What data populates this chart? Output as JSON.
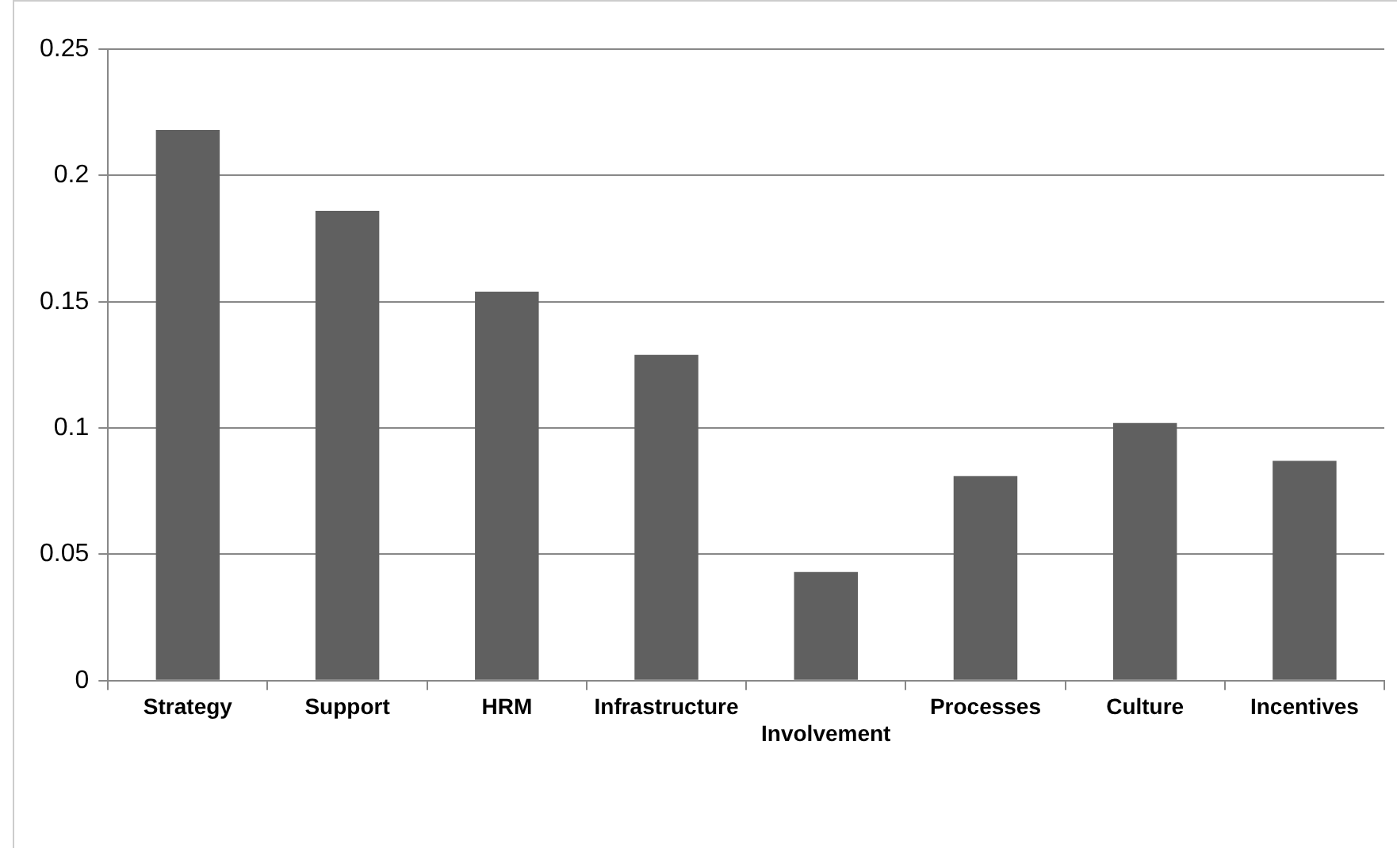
{
  "chart_data": {
    "type": "bar",
    "categories": [
      "Strategy",
      "Support",
      "HRM",
      "Infrastructure",
      "Involvement",
      "Processes",
      "Culture",
      "Incentives"
    ],
    "values": [
      0.218,
      0.186,
      0.154,
      0.129,
      0.043,
      0.081,
      0.102,
      0.087
    ],
    "color": "#606060",
    "ylim": [
      0,
      0.25
    ],
    "yticks": [
      0,
      0.05,
      0.1,
      0.15,
      0.2,
      0.25
    ],
    "grid": "y"
  }
}
